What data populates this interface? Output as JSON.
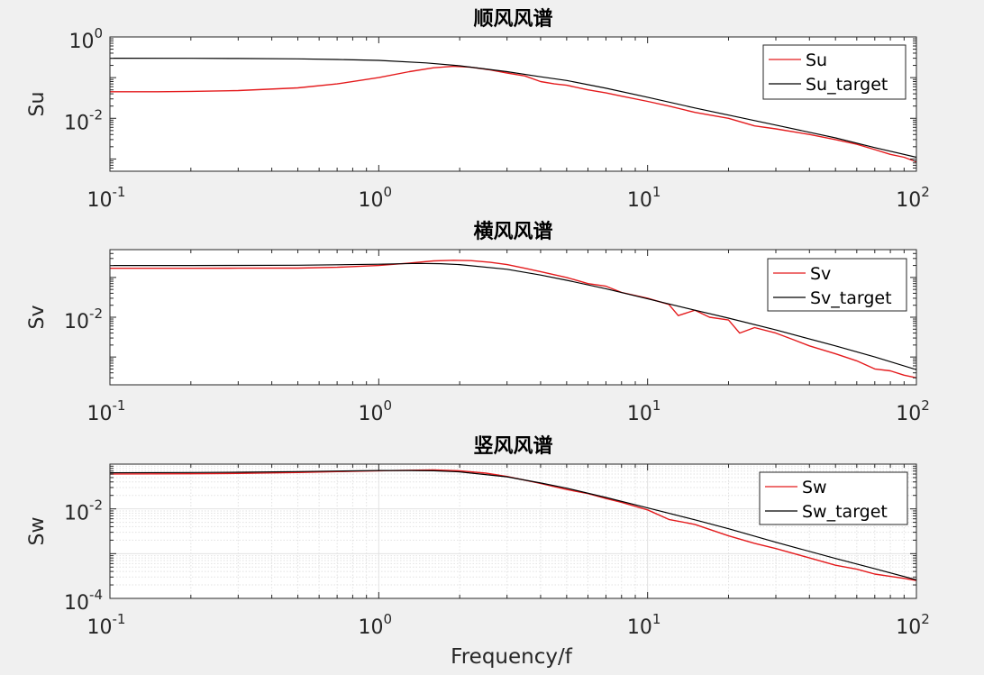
{
  "figure": {
    "background": "#f0f0f0",
    "axes_background": "#ffffff"
  },
  "chart_data": [
    {
      "type": "line",
      "title": "顺风风谱",
      "xlabel": "",
      "ylabel": "Su",
      "xscale": "log",
      "yscale": "log",
      "xlim": [
        0.1,
        100
      ],
      "ylim": [
        0.0005,
        1
      ],
      "xticks": [
        0.1,
        1,
        10,
        100
      ],
      "yticks": [
        1,
        0.01
      ],
      "grid": "off",
      "legend_position": "top-right",
      "series": [
        {
          "name": "Su",
          "color": "#e41a1c",
          "x": [
            0.1,
            0.15,
            0.2,
            0.3,
            0.5,
            0.7,
            1.0,
            1.3,
            1.6,
            1.9,
            2.2,
            2.6,
            3.0,
            3.5,
            4.0,
            4.5,
            5.0,
            6.0,
            7.0,
            8.0,
            10,
            12,
            15,
            20,
            25,
            30,
            40,
            50,
            60,
            70,
            80,
            90,
            100
          ],
          "y": [
            0.045,
            0.045,
            0.046,
            0.048,
            0.056,
            0.07,
            0.1,
            0.14,
            0.175,
            0.19,
            0.18,
            0.155,
            0.13,
            0.11,
            0.08,
            0.07,
            0.065,
            0.05,
            0.042,
            0.035,
            0.026,
            0.02,
            0.014,
            0.01,
            0.0065,
            0.0055,
            0.004,
            0.003,
            0.0023,
            0.0017,
            0.0013,
            0.0011,
            0.00085
          ]
        },
        {
          "name": "Su_target",
          "color": "#000000",
          "x": [
            0.1,
            0.2,
            0.3,
            0.5,
            0.7,
            1.0,
            1.5,
            2.0,
            3.0,
            4.0,
            5.0,
            7.0,
            10,
            15,
            20,
            30,
            50,
            70,
            100
          ],
          "y": [
            0.3,
            0.298,
            0.296,
            0.29,
            0.28,
            0.265,
            0.23,
            0.195,
            0.14,
            0.105,
            0.085,
            0.055,
            0.033,
            0.018,
            0.012,
            0.0068,
            0.0033,
            0.0019,
            0.0011
          ]
        }
      ]
    },
    {
      "type": "line",
      "title": "横风风谱",
      "xlabel": "",
      "ylabel": "Sv",
      "xscale": "log",
      "yscale": "log",
      "xlim": [
        0.1,
        100
      ],
      "ylim": [
        0.0002,
        0.5
      ],
      "xticks": [
        0.1,
        1,
        10,
        100
      ],
      "yticks": [
        0.01
      ],
      "grid": "off",
      "legend_position": "top-right",
      "series": [
        {
          "name": "Sv",
          "color": "#e41a1c",
          "x": [
            0.1,
            0.2,
            0.3,
            0.5,
            0.7,
            1.0,
            1.3,
            1.6,
            1.9,
            2.2,
            2.6,
            3.0,
            3.5,
            4.0,
            5.0,
            6.0,
            7.0,
            8.0,
            10,
            12,
            13,
            15,
            17,
            20,
            22,
            25,
            30,
            35,
            40,
            50,
            60,
            70,
            80,
            90,
            100
          ],
          "y": [
            0.17,
            0.17,
            0.171,
            0.172,
            0.18,
            0.2,
            0.23,
            0.26,
            0.27,
            0.265,
            0.24,
            0.21,
            0.17,
            0.14,
            0.1,
            0.07,
            0.06,
            0.042,
            0.03,
            0.021,
            0.011,
            0.015,
            0.01,
            0.0085,
            0.004,
            0.0055,
            0.004,
            0.0027,
            0.0019,
            0.0012,
            0.0008,
            0.0005,
            0.00045,
            0.00035,
            0.0003
          ]
        },
        {
          "name": "Sv_target",
          "color": "#000000",
          "x": [
            0.1,
            0.2,
            0.3,
            0.5,
            0.7,
            1.0,
            1.2,
            1.4,
            1.7,
            2.0,
            3.0,
            4.0,
            5.0,
            7.0,
            10,
            15,
            20,
            30,
            50,
            70,
            100
          ],
          "y": [
            0.2,
            0.2,
            0.201,
            0.203,
            0.208,
            0.215,
            0.221,
            0.225,
            0.222,
            0.21,
            0.16,
            0.115,
            0.085,
            0.052,
            0.029,
            0.015,
            0.0095,
            0.0048,
            0.0019,
            0.001,
            0.00048
          ]
        }
      ]
    },
    {
      "type": "line",
      "title": "竖风风谱",
      "xlabel": "Frequency/f",
      "ylabel": "Sw",
      "xscale": "log",
      "yscale": "log",
      "xlim": [
        0.1,
        100
      ],
      "ylim": [
        0.0001,
        0.1
      ],
      "xticks": [
        0.1,
        1,
        10,
        100
      ],
      "yticks": [
        0.01,
        0.0001
      ],
      "grid": "on",
      "legend_position": "top-right",
      "series": [
        {
          "name": "Sw",
          "color": "#e41a1c",
          "x": [
            0.1,
            0.2,
            0.3,
            0.5,
            0.7,
            1.0,
            1.3,
            1.6,
            2.0,
            2.5,
            3.0,
            4.0,
            5.0,
            6.0,
            7.0,
            8.0,
            10,
            12,
            15,
            20,
            25,
            30,
            40,
            50,
            60,
            70,
            80,
            90,
            100
          ],
          "y": [
            0.06,
            0.061,
            0.062,
            0.065,
            0.068,
            0.071,
            0.073,
            0.074,
            0.071,
            0.063,
            0.053,
            0.037,
            0.027,
            0.022,
            0.017,
            0.014,
            0.0095,
            0.0058,
            0.0045,
            0.0025,
            0.0017,
            0.0013,
            0.0008,
            0.00055,
            0.00045,
            0.00035,
            0.00031,
            0.00028,
            0.00025
          ]
        },
        {
          "name": "Sw_target",
          "color": "#000000",
          "x": [
            0.1,
            0.2,
            0.3,
            0.5,
            0.7,
            1.0,
            1.3,
            1.6,
            2.0,
            3.0,
            4.0,
            5.0,
            7.0,
            10,
            15,
            20,
            30,
            50,
            70,
            100
          ],
          "y": [
            0.064,
            0.065,
            0.066,
            0.068,
            0.07,
            0.072,
            0.072,
            0.071,
            0.067,
            0.052,
            0.038,
            0.029,
            0.018,
            0.0105,
            0.0057,
            0.0036,
            0.0018,
            0.00078,
            0.00046,
            0.00026
          ]
        }
      ]
    }
  ]
}
